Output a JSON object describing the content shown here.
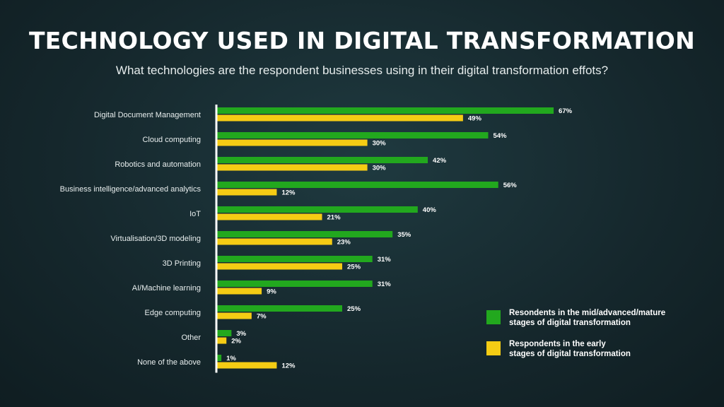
{
  "colors": {
    "mid": "#22a81e",
    "early": "#f5cc14",
    "axis": "#ffffff"
  },
  "chart_data": {
    "type": "bar",
    "orientation": "horizontal",
    "title": "TECHNOLOGY USED IN DIGITAL TRANSFORMATION",
    "subtitle": "What technologies are the respondent businesses using in their digital transformation effots?",
    "categories": [
      "Digital Document Management",
      "Cloud computing",
      "Robotics and automation",
      "Business intelligence/advanced analytics",
      "IoT",
      "Virtualisation/3D modeling",
      "3D Printing",
      "AI/Machine learning",
      "Edge computing",
      "Other",
      "None of the above"
    ],
    "series": [
      {
        "name": "Resondents in the mid/advanced/mature stages of digital transformation",
        "values": [
          67,
          54,
          42,
          56,
          40,
          35,
          31,
          31,
          25,
          3,
          1
        ],
        "labels": [
          "67%",
          "54%",
          "42%",
          "56%",
          "40%",
          "35%",
          "31%",
          "31%",
          "25%",
          "3%",
          "1%"
        ]
      },
      {
        "name": "Respondents in the early stages of digital transformation",
        "values": [
          49,
          30,
          30,
          12,
          21,
          23,
          25,
          9,
          7,
          2,
          12
        ],
        "labels": [
          "49%",
          "30%",
          "30%",
          "12%",
          "21%",
          "23%",
          "25%",
          "9%",
          "7%",
          "2%",
          "12%"
        ]
      }
    ],
    "xlim": [
      0,
      100
    ],
    "grid": false,
    "legend_position": "bottom-right"
  },
  "legend": {
    "mid": "Resondents in the mid/advanced/mature\nstages of digital transformation",
    "early": "Respondents in the early\nstages of digital transformation"
  }
}
